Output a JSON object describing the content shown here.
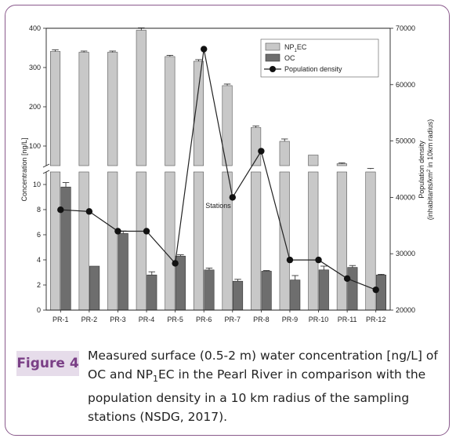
{
  "figure": {
    "label": "Figure 4",
    "caption_parts": [
      "Measured surface (0.5-2 m) water concentration [ng/L] of OC and NP",
      "1",
      "EC in the Pearl River in comparison with the population density in a 10 km radius of the sampling stations (NSDG, 2017)."
    ]
  },
  "colors": {
    "np1ec": "#c8c8c8",
    "oc": "#6e6e6e",
    "line": "#222222",
    "frame": "#8a5a8c",
    "label_bg": "#e6dcea",
    "label_text": "#7a3f86"
  },
  "chart_data": {
    "type": "bar",
    "categories": [
      "PR-1",
      "PR-2",
      "PR-3",
      "PR-4",
      "PR-5",
      "PR-6",
      "PR-7",
      "PR-8",
      "PR-9",
      "PR-10",
      "PR-11",
      "PR-12"
    ],
    "xlabel": "Stations",
    "ylabel": "Concentration [ng/L]",
    "y2label_parts": [
      "Population density",
      "(inhabitants/km",
      "2",
      " in 10km radius)"
    ],
    "y_lower_ticks": [
      "0",
      "2",
      "4",
      "6",
      "8",
      "10"
    ],
    "y_upper_ticks": [
      "100",
      "200",
      "300",
      "400"
    ],
    "y2_ticks": [
      "20000",
      "30000",
      "40000",
      "50000",
      "60000",
      "70000"
    ],
    "y_lower_range": [
      0,
      11
    ],
    "y_upper_range": [
      50,
      400
    ],
    "y2_range": [
      20000,
      70000
    ],
    "legend_position": "top-right",
    "legend": {
      "np1ec_parts": [
        "NP",
        "1",
        "EC"
      ],
      "oc": "OC",
      "pop": "Population density"
    },
    "series": [
      {
        "name": "NP1EC",
        "values": [
          341,
          339,
          339,
          395,
          328,
          316,
          254,
          147,
          112,
          77,
          55,
          41
        ],
        "errors": [
          4,
          3,
          3,
          6,
          3,
          4,
          4,
          4,
          6,
          0,
          2,
          2
        ]
      },
      {
        "name": "OC",
        "values": [
          9.8,
          3.5,
          6.1,
          2.8,
          4.3,
          3.2,
          2.3,
          3.1,
          2.4,
          3.2,
          3.4,
          2.8
        ],
        "errors": [
          0.35,
          0,
          0.2,
          0.25,
          0.1,
          0.15,
          0.15,
          0.05,
          0.35,
          0.3,
          0.15,
          0.05
        ]
      },
      {
        "name": "Population density",
        "values": [
          37800,
          37500,
          34000,
          34000,
          28300,
          66300,
          40000,
          48200,
          28900,
          28900,
          25600,
          23600
        ]
      }
    ]
  }
}
